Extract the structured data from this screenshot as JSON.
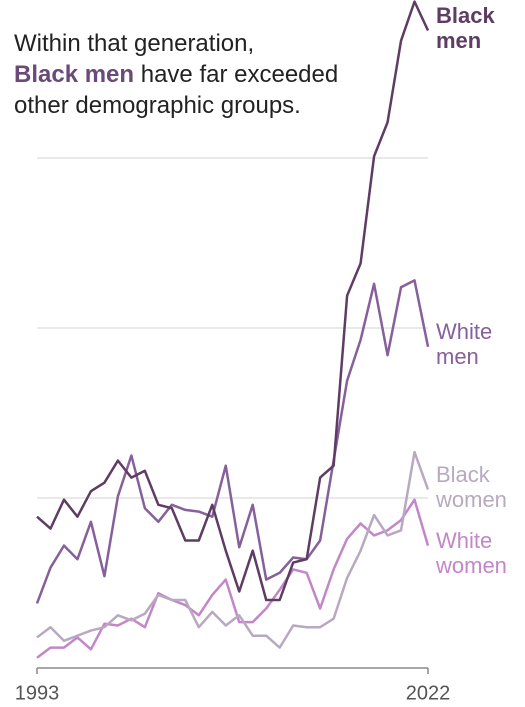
{
  "chart_data": {
    "type": "line",
    "title_segments": [
      "Within that generation,",
      "Black men",
      "have far exceeded",
      "other demographic groups."
    ],
    "x": [
      1993,
      1994,
      1995,
      1996,
      1997,
      1998,
      1999,
      2000,
      2001,
      2002,
      2003,
      2004,
      2005,
      2006,
      2007,
      2008,
      2009,
      2010,
      2011,
      2012,
      2013,
      2014,
      2015,
      2016,
      2017,
      2018,
      2019,
      2020,
      2021,
      2022
    ],
    "xlim": [
      1993,
      2022
    ],
    "xticks": [
      1993,
      2022
    ],
    "ylim": [
      0,
      4
    ],
    "ygrid": [
      1,
      2,
      3
    ],
    "series": [
      {
        "name": "Black men",
        "color": "#5e3c63",
        "bold": true,
        "values": [
          0.89,
          0.82,
          0.99,
          0.89,
          1.04,
          1.09,
          1.22,
          1.12,
          1.16,
          0.96,
          0.94,
          0.75,
          0.75,
          0.96,
          0.69,
          0.45,
          0.69,
          0.4,
          0.4,
          0.62,
          0.64,
          1.12,
          1.19,
          2.19,
          2.38,
          3.01,
          3.21,
          3.69,
          3.92,
          3.75
        ]
      },
      {
        "name": "White men",
        "color": "#86609a",
        "values": [
          0.38,
          0.59,
          0.72,
          0.64,
          0.86,
          0.54,
          1.01,
          1.25,
          0.94,
          0.86,
          0.96,
          0.93,
          0.92,
          0.89,
          1.19,
          0.71,
          0.96,
          0.52,
          0.56,
          0.65,
          0.64,
          0.75,
          1.22,
          1.69,
          1.93,
          2.26,
          1.84,
          2.24,
          2.28,
          1.89
        ]
      },
      {
        "name": "Black women",
        "color": "#b9a9c0",
        "values": [
          0.18,
          0.24,
          0.16,
          0.19,
          0.22,
          0.24,
          0.31,
          0.28,
          0.32,
          0.43,
          0.4,
          0.4,
          0.24,
          0.33,
          0.25,
          0.31,
          0.19,
          0.19,
          0.12,
          0.25,
          0.24,
          0.24,
          0.29,
          0.53,
          0.69,
          0.9,
          0.78,
          0.81,
          1.27,
          1.05
        ]
      },
      {
        "name": "White women",
        "color": "#c386c8",
        "values": [
          0.06,
          0.12,
          0.12,
          0.18,
          0.11,
          0.26,
          0.25,
          0.29,
          0.24,
          0.44,
          0.4,
          0.37,
          0.31,
          0.43,
          0.52,
          0.27,
          0.27,
          0.35,
          0.46,
          0.58,
          0.56,
          0.35,
          0.58,
          0.76,
          0.85,
          0.78,
          0.81,
          0.87,
          0.99,
          0.72
        ]
      }
    ]
  }
}
